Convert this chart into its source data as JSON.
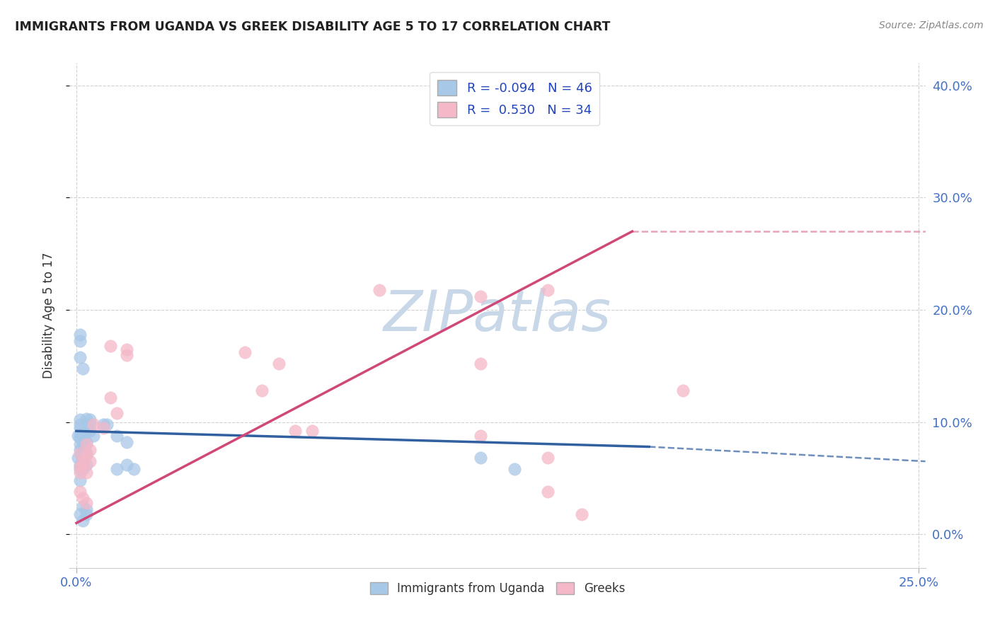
{
  "title": "IMMIGRANTS FROM UGANDA VS GREEK DISABILITY AGE 5 TO 17 CORRELATION CHART",
  "source": "Source: ZipAtlas.com",
  "ylabel": "Disability Age 5 to 17",
  "legend_labels": [
    "Immigrants from Uganda",
    "Greeks"
  ],
  "legend_R": [
    -0.094,
    0.53
  ],
  "legend_N": [
    46,
    34
  ],
  "blue_color": "#a8c8e8",
  "pink_color": "#f4b8c8",
  "blue_line_color": "#3060a0",
  "pink_line_color": "#d04878",
  "blue_scatter": [
    [
      0.001,
      0.09
    ],
    [
      0.002,
      0.082
    ],
    [
      0.001,
      0.095
    ],
    [
      0.0005,
      0.088
    ],
    [
      0.001,
      0.086
    ],
    [
      0.003,
      0.092
    ],
    [
      0.002,
      0.089
    ],
    [
      0.001,
      0.075
    ],
    [
      0.0015,
      0.07
    ],
    [
      0.001,
      0.098
    ],
    [
      0.001,
      0.102
    ],
    [
      0.002,
      0.083
    ],
    [
      0.003,
      0.103
    ],
    [
      0.003,
      0.082
    ],
    [
      0.004,
      0.092
    ],
    [
      0.002,
      0.078
    ],
    [
      0.001,
      0.08
    ],
    [
      0.001,
      0.062
    ],
    [
      0.002,
      0.072
    ],
    [
      0.0005,
      0.068
    ],
    [
      0.001,
      0.058
    ],
    [
      0.003,
      0.062
    ],
    [
      0.004,
      0.098
    ],
    [
      0.003,
      0.072
    ],
    [
      0.002,
      0.058
    ],
    [
      0.005,
      0.088
    ],
    [
      0.004,
      0.102
    ],
    [
      0.008,
      0.098
    ],
    [
      0.001,
      0.158
    ],
    [
      0.002,
      0.148
    ],
    [
      0.001,
      0.172
    ],
    [
      0.001,
      0.178
    ],
    [
      0.009,
      0.098
    ],
    [
      0.012,
      0.088
    ],
    [
      0.015,
      0.082
    ],
    [
      0.012,
      0.058
    ],
    [
      0.015,
      0.062
    ],
    [
      0.017,
      0.058
    ],
    [
      0.12,
      0.068
    ],
    [
      0.13,
      0.058
    ],
    [
      0.001,
      0.018
    ],
    [
      0.002,
      0.012
    ],
    [
      0.003,
      0.018
    ],
    [
      0.001,
      0.048
    ],
    [
      0.002,
      0.025
    ],
    [
      0.003,
      0.022
    ]
  ],
  "pink_scatter": [
    [
      0.001,
      0.072
    ],
    [
      0.002,
      0.065
    ],
    [
      0.001,
      0.06
    ],
    [
      0.003,
      0.07
    ],
    [
      0.002,
      0.062
    ],
    [
      0.001,
      0.055
    ],
    [
      0.003,
      0.055
    ],
    [
      0.004,
      0.075
    ],
    [
      0.005,
      0.098
    ],
    [
      0.004,
      0.065
    ],
    [
      0.003,
      0.08
    ],
    [
      0.01,
      0.122
    ],
    [
      0.012,
      0.108
    ],
    [
      0.015,
      0.16
    ],
    [
      0.015,
      0.165
    ],
    [
      0.01,
      0.168
    ],
    [
      0.008,
      0.095
    ],
    [
      0.05,
      0.162
    ],
    [
      0.06,
      0.152
    ],
    [
      0.055,
      0.128
    ],
    [
      0.065,
      0.092
    ],
    [
      0.07,
      0.092
    ],
    [
      0.09,
      0.218
    ],
    [
      0.12,
      0.152
    ],
    [
      0.14,
      0.038
    ],
    [
      0.15,
      0.018
    ],
    [
      0.12,
      0.212
    ],
    [
      0.14,
      0.218
    ],
    [
      0.18,
      0.128
    ],
    [
      0.12,
      0.088
    ],
    [
      0.14,
      0.068
    ],
    [
      0.001,
      0.038
    ],
    [
      0.002,
      0.032
    ],
    [
      0.003,
      0.028
    ]
  ],
  "xlim": [
    -0.002,
    0.252
  ],
  "ylim": [
    -0.03,
    0.42
  ],
  "xtick_positions": [
    0.0,
    0.25
  ],
  "xticklabels": [
    "0.0%",
    "25.0%"
  ],
  "ytick_grid_positions": [
    0.0,
    0.1,
    0.2,
    0.3,
    0.4
  ],
  "yticks_right": [
    0.0,
    0.1,
    0.2,
    0.3,
    0.4
  ],
  "yticklabels_right": [
    "0.0%",
    "10.0%",
    "20.0%",
    "30.0%",
    "40.0%"
  ],
  "blue_line": {
    "x0": 0.0,
    "y0": 0.092,
    "x1": 0.17,
    "y1": 0.078,
    "x2": 0.252,
    "y2": 0.065
  },
  "pink_line": {
    "x0": 0.0,
    "y0": 0.01,
    "x1": 0.165,
    "y1": 0.27,
    "x2": 0.252,
    "y2": 0.27
  },
  "grid_color": "#cccccc",
  "background_color": "#ffffff",
  "watermark": "ZIPatlas",
  "watermark_color": "#c8d8e8"
}
